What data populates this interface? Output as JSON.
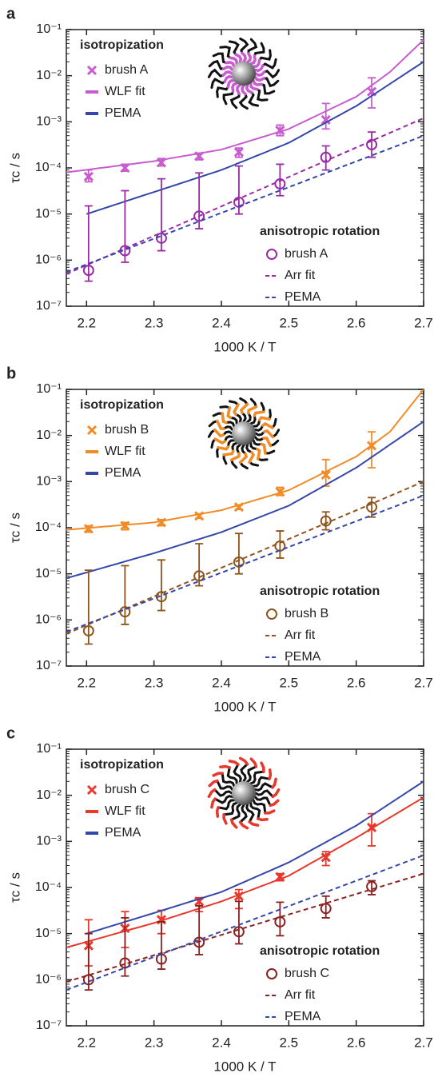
{
  "chart_data": [
    {
      "type": "line",
      "label": "a",
      "x_label": "1000 K / T",
      "y_label": "τc / s",
      "y_scale": "log",
      "xlim": [
        2.17,
        2.7
      ],
      "ylim": [
        1e-07,
        0.1
      ],
      "xticks": [
        2.2,
        2.3,
        2.4,
        2.5,
        2.6,
        2.7
      ],
      "yticks": [
        {
          "value": 1e-07,
          "label": "10⁻⁷"
        },
        {
          "value": 1e-06,
          "label": "10⁻⁶"
        },
        {
          "value": 1e-05,
          "label": "10⁻⁵"
        },
        {
          "value": 0.0001,
          "label": "10⁻⁴"
        },
        {
          "value": 0.001,
          "label": "10⁻³"
        },
        {
          "value": 0.01,
          "label": "10⁻²"
        },
        {
          "value": 0.1,
          "label": "10⁻¹"
        }
      ],
      "legend_titles": [
        "isotropization",
        "anisotropic rotation"
      ],
      "series": [
        {
          "name": "brush A",
          "style": "x",
          "color": "#c75ccf",
          "x": [
            2.203,
            2.257,
            2.311,
            2.367,
            2.426,
            2.487,
            2.555,
            2.623
          ],
          "values": [
            6.5e-05,
            0.0001,
            0.00013,
            0.00018,
            0.00022,
            0.00065,
            0.0011,
            0.0045
          ],
          "err_low": [
            5e-05,
            8.5e-05,
            0.00011,
            0.00015,
            0.00017,
            0.0005,
            0.0007,
            0.002
          ],
          "err_high": [
            9e-05,
            0.00012,
            0.00016,
            0.00021,
            0.00027,
            0.00085,
            0.0025,
            0.009
          ]
        },
        {
          "name": "WLF fit",
          "style": "line",
          "color": "#c75ccf",
          "x": [
            2.17,
            2.3,
            2.4,
            2.5,
            2.6,
            2.65,
            2.7
          ],
          "values": [
            8e-05,
            0.00014,
            0.00025,
            0.0007,
            0.0035,
            0.012,
            0.06
          ]
        },
        {
          "name": "PEMA",
          "style": "line",
          "color": "#3547a8",
          "x": [
            2.2,
            2.3,
            2.4,
            2.5,
            2.6,
            2.7
          ],
          "values": [
            1e-05,
            3e-05,
            9e-05,
            0.00035,
            0.0022,
            0.02
          ]
        },
        {
          "name": "brush A",
          "style": "circle",
          "color": "#9a2aa6",
          "x": [
            2.203,
            2.257,
            2.311,
            2.367,
            2.426,
            2.487,
            2.555,
            2.623
          ],
          "values": [
            6e-07,
            1.6e-06,
            3e-06,
            9e-06,
            1.8e-05,
            4.5e-05,
            0.00017,
            0.00032
          ],
          "err_low": [
            3.5e-07,
            9e-07,
            1.6e-06,
            4.8e-06,
            1e-05,
            2.5e-05,
            9e-05,
            0.00017
          ],
          "err_high": [
            1.5e-05,
            3.2e-05,
            5.8e-05,
            7.8e-05,
            0.00011,
            0.00012,
            0.0003,
            0.0006
          ]
        },
        {
          "name": "Arr fit",
          "style": "dashed",
          "color": "#9a2aa6",
          "x": [
            2.17,
            2.7
          ],
          "values": [
            5e-07,
            0.0012
          ]
        },
        {
          "name": "PEMA",
          "style": "dashed",
          "color": "#3547a8",
          "x": [
            2.17,
            2.7
          ],
          "values": [
            5.5e-07,
            0.0005
          ]
        }
      ]
    },
    {
      "type": "line",
      "label": "b",
      "x_label": "1000 K / T",
      "y_label": "τc / s",
      "y_scale": "log",
      "xlim": [
        2.17,
        2.7
      ],
      "ylim": [
        1e-07,
        0.1
      ],
      "xticks": [
        2.2,
        2.3,
        2.4,
        2.5,
        2.6,
        2.7
      ],
      "yticks": [
        {
          "value": 1e-07,
          "label": "10⁻⁷"
        },
        {
          "value": 1e-06,
          "label": "10⁻⁶"
        },
        {
          "value": 1e-05,
          "label": "10⁻⁵"
        },
        {
          "value": 0.0001,
          "label": "10⁻⁴"
        },
        {
          "value": 0.001,
          "label": "10⁻³"
        },
        {
          "value": 0.01,
          "label": "10⁻²"
        },
        {
          "value": 0.1,
          "label": "10⁻¹"
        }
      ],
      "legend_titles": [
        "isotropization",
        "anisotropic rotation"
      ],
      "series": [
        {
          "name": "brush B",
          "style": "x",
          "color": "#f18b27",
          "x": [
            2.203,
            2.257,
            2.311,
            2.367,
            2.426,
            2.487,
            2.555,
            2.623
          ],
          "values": [
            9.5e-05,
            0.00011,
            0.00013,
            0.00018,
            0.00028,
            0.0006,
            0.0014,
            0.006
          ],
          "err_low": [
            8e-05,
            9e-05,
            0.00011,
            0.00016,
            0.00025,
            0.0005,
            0.0008,
            0.002
          ],
          "err_high": [
            0.00011,
            0.00013,
            0.00015,
            0.0002,
            0.00031,
            0.00075,
            0.003,
            0.012
          ]
        },
        {
          "name": "WLF fit",
          "style": "line",
          "color": "#f18b27",
          "x": [
            2.17,
            2.3,
            2.4,
            2.5,
            2.6,
            2.65,
            2.7
          ],
          "values": [
            9e-05,
            0.00013,
            0.00024,
            0.00065,
            0.0035,
            0.012,
            0.1
          ]
        },
        {
          "name": "PEMA",
          "style": "line",
          "color": "#3547a8",
          "x": [
            2.17,
            2.3,
            2.4,
            2.5,
            2.6,
            2.7
          ],
          "values": [
            8e-06,
            2.8e-05,
            8e-05,
            0.0003,
            0.002,
            0.02
          ]
        },
        {
          "name": "brush B",
          "style": "circle",
          "color": "#8f541c",
          "x": [
            2.203,
            2.257,
            2.311,
            2.367,
            2.426,
            2.487,
            2.555,
            2.623
          ],
          "values": [
            5.8e-07,
            1.5e-06,
            3.2e-06,
            9e-06,
            1.8e-05,
            4e-05,
            0.00014,
            0.00028
          ],
          "err_low": [
            3e-07,
            8e-07,
            1.6e-06,
            5.5e-06,
            1e-05,
            2.2e-05,
            9e-05,
            0.00017
          ],
          "err_high": [
            1.2e-05,
            1.5e-05,
            2e-05,
            4.5e-05,
            7.5e-05,
            8.5e-05,
            0.00022,
            0.00045
          ]
        },
        {
          "name": "Arr fit",
          "style": "dashed",
          "color": "#8f541c",
          "x": [
            2.17,
            2.7
          ],
          "values": [
            5e-07,
            0.001
          ]
        },
        {
          "name": "PEMA",
          "style": "dashed",
          "color": "#3547a8",
          "x": [
            2.17,
            2.7
          ],
          "values": [
            5.5e-07,
            0.0005
          ]
        }
      ]
    },
    {
      "type": "line",
      "label": "c",
      "x_label": "1000 K / T",
      "y_label": "τc / s",
      "y_scale": "log",
      "xlim": [
        2.17,
        2.7
      ],
      "ylim": [
        1e-07,
        0.1
      ],
      "xticks": [
        2.2,
        2.3,
        2.4,
        2.5,
        2.6,
        2.7
      ],
      "yticks": [
        {
          "value": 1e-07,
          "label": "10⁻⁷"
        },
        {
          "value": 1e-06,
          "label": "10⁻⁶"
        },
        {
          "value": 1e-05,
          "label": "10⁻⁵"
        },
        {
          "value": 0.0001,
          "label": "10⁻⁴"
        },
        {
          "value": 0.001,
          "label": "10⁻³"
        },
        {
          "value": 0.01,
          "label": "10⁻²"
        },
        {
          "value": 0.1,
          "label": "10⁻¹"
        }
      ],
      "legend_titles": [
        "isotropization",
        "anisotropic rotation"
      ],
      "series": [
        {
          "name": "brush C",
          "style": "x",
          "color": "#e8382c",
          "x": [
            2.203,
            2.257,
            2.311,
            2.367,
            2.426,
            2.487,
            2.555,
            2.623
          ],
          "values": [
            5.5e-06,
            1.3e-05,
            2e-05,
            5e-05,
            6.5e-05,
            0.00017,
            0.00045,
            0.002
          ],
          "err_low": [
            2e-06,
            5e-06,
            1e-05,
            3e-05,
            3.5e-05,
            0.00014,
            0.0003,
            0.0008
          ],
          "err_high": [
            2e-05,
            3e-05,
            3.2e-05,
            6e-05,
            9e-05,
            0.0002,
            0.0006,
            0.004
          ]
        },
        {
          "name": "WLF fit",
          "style": "line",
          "color": "#e8382c",
          "x": [
            2.17,
            2.3,
            2.4,
            2.5,
            2.6,
            2.7
          ],
          "values": [
            5e-06,
            1.7e-05,
            5e-05,
            0.00018,
            0.0012,
            0.009
          ]
        },
        {
          "name": "PEMA",
          "style": "line",
          "color": "#3547a8",
          "x": [
            2.2,
            2.3,
            2.4,
            2.5,
            2.6,
            2.7
          ],
          "values": [
            1e-05,
            2.8e-05,
            8e-05,
            0.00035,
            0.0022,
            0.02
          ]
        },
        {
          "name": "brush C",
          "style": "circle",
          "color": "#8b2222",
          "x": [
            2.203,
            2.257,
            2.311,
            2.367,
            2.426,
            2.487,
            2.555,
            2.623
          ],
          "values": [
            1e-06,
            2.3e-06,
            2.8e-06,
            6.5e-06,
            1.1e-05,
            1.8e-05,
            3.5e-05,
            0.000105
          ],
          "err_low": [
            6e-07,
            1.2e-06,
            1.7e-06,
            3.5e-06,
            6e-06,
            9e-06,
            2.2e-05,
            7e-05
          ],
          "err_high": [
            1e-05,
            2.2e-05,
            1.8e-05,
            4e-05,
            5e-05,
            4.8e-05,
            6.5e-05,
            0.00014
          ]
        },
        {
          "name": "Arr fit",
          "style": "dashed",
          "color": "#8b2222",
          "x": [
            2.17,
            2.7
          ],
          "values": [
            9e-07,
            0.0002
          ]
        },
        {
          "name": "PEMA",
          "style": "dashed",
          "color": "#3547a8",
          "x": [
            2.17,
            2.7
          ],
          "values": [
            6e-07,
            0.0005
          ]
        }
      ]
    }
  ]
}
